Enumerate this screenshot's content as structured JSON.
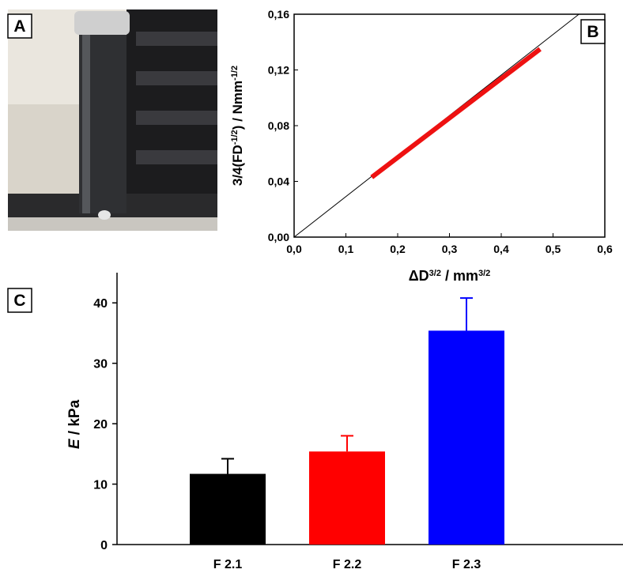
{
  "image": {
    "label": "A"
  },
  "chart_data": [
    {
      "type": "line",
      "panel": "B",
      "xlabel": [
        {
          "text": "ΔD"
        },
        {
          "text": "3/2",
          "sup": true
        },
        {
          "text": " / mm"
        },
        {
          "text": "3/2",
          "sup": true
        }
      ],
      "ylabel": [
        {
          "text": "3/4(FD"
        },
        {
          "text": "-1/2",
          "sup": true
        },
        {
          "text": ") / Nmm"
        },
        {
          "text": "-1/2",
          "sup": true
        }
      ],
      "xlim": [
        0,
        0.6
      ],
      "ylim": [
        0,
        0.16
      ],
      "xticks": [
        {
          "value": 0,
          "label": "0,0"
        },
        {
          "value": 0.1,
          "label": "0,1"
        },
        {
          "value": 0.2,
          "label": "0,2"
        },
        {
          "value": 0.3,
          "label": "0,3"
        },
        {
          "value": 0.4,
          "label": "0,4"
        },
        {
          "value": 0.5,
          "label": "0,5"
        },
        {
          "value": 0.6,
          "label": "0,6"
        }
      ],
      "yticks": [
        {
          "value": 0,
          "label": "0,00"
        },
        {
          "value": 0.04,
          "label": "0,04"
        },
        {
          "value": 0.08,
          "label": "0,08"
        },
        {
          "value": 0.12,
          "label": "0,12"
        },
        {
          "value": 0.16,
          "label": "0,16"
        }
      ],
      "series": [
        {
          "color": "#000000",
          "line_width": 1,
          "x": [
            0,
            0.55
          ],
          "values": [
            0,
            0.16
          ]
        },
        {
          "color": "#ee1111",
          "line_width": 6,
          "x": [
            0.15,
            0.475
          ],
          "values": [
            0.043,
            0.135
          ]
        }
      ]
    },
    {
      "type": "bar",
      "panel": "C",
      "ylabel": [
        {
          "text": "E",
          "italic": true
        },
        {
          "text": " / kPa"
        }
      ],
      "categories": [
        "F 2.1",
        "F 2.2",
        "F 2.3"
      ],
      "values": [
        11.7,
        15.4,
        35.4
      ],
      "errors": [
        2.5,
        2.6,
        5.4
      ],
      "colors": [
        "#000000",
        "#ff0000",
        "#0000ff"
      ],
      "ylim": [
        0,
        45
      ],
      "yticks": [
        0,
        10,
        20,
        30,
        40
      ]
    }
  ]
}
